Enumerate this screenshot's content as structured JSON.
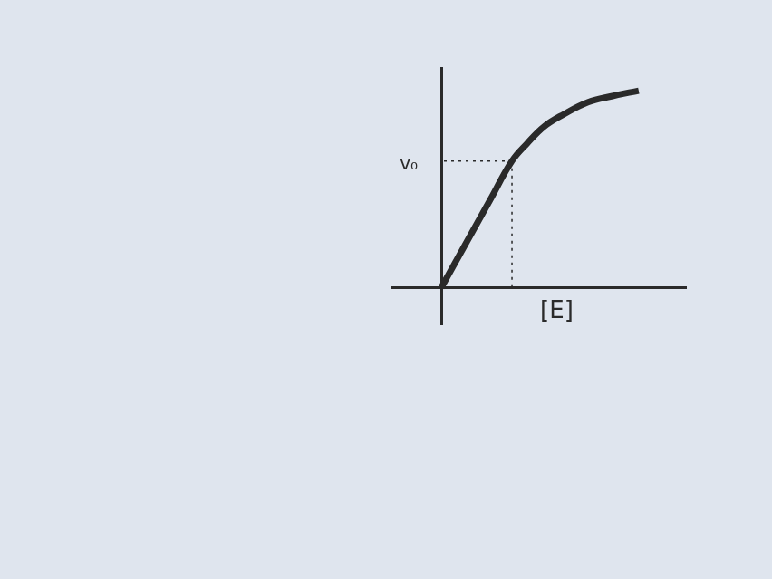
{
  "chart_data": {
    "type": "line",
    "x_label": "[E]",
    "x": [
      0,
      1,
      2,
      2.89,
      3.5,
      4.2,
      5,
      6,
      7,
      8.07
    ],
    "values": [
      0,
      1.8,
      3.6,
      5.19,
      5.9,
      6.6,
      7.1,
      7.6,
      7.85,
      8.07
    ],
    "color": "#2a2a2a",
    "marker": "none",
    "xlim": [
      -2,
      10
    ],
    "ylim": [
      -1.5,
      9
    ],
    "grid": false,
    "tick_labels": false,
    "annotations": [
      {
        "text": "v₀",
        "x": 2.89,
        "y": 5.19
      }
    ]
  }
}
